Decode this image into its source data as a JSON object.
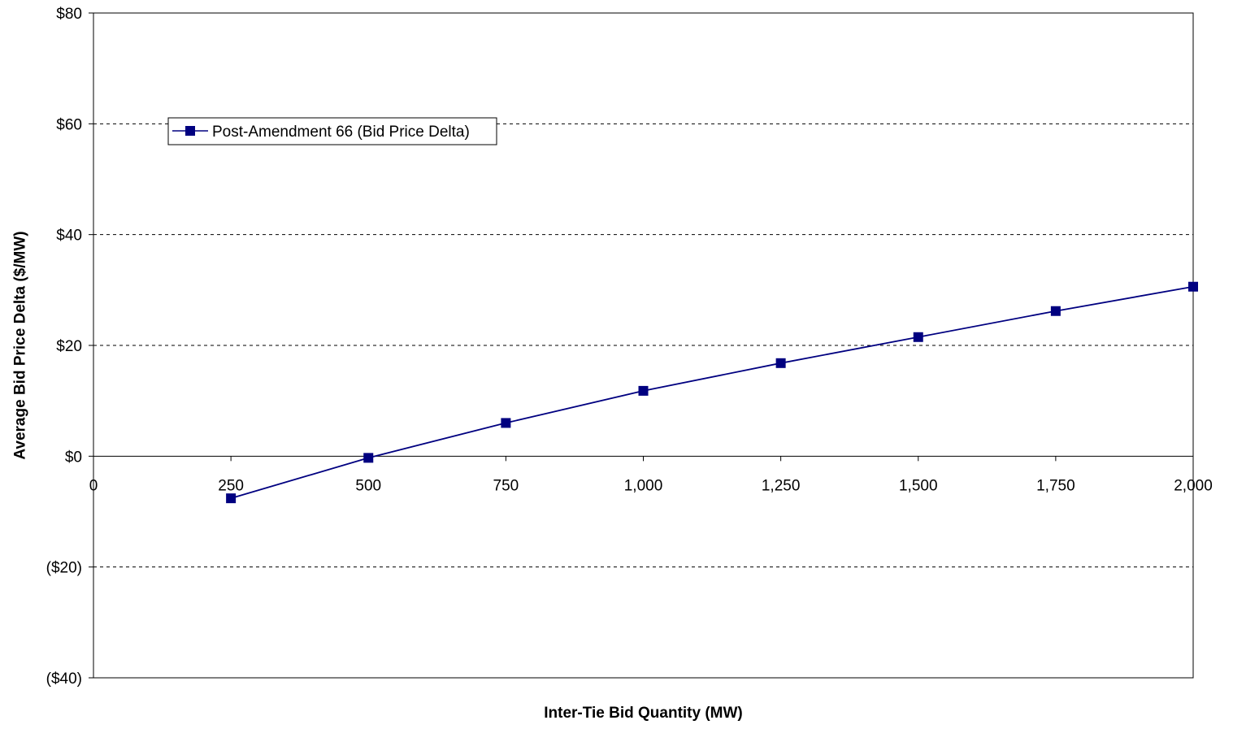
{
  "chart_data": {
    "type": "line",
    "title": "",
    "xlabel": "Inter-Tie Bid Quantity (MW)",
    "ylabel": "Average Bid Price Delta ($/MW)",
    "xlim": [
      0,
      2000
    ],
    "ylim": [
      -40,
      80
    ],
    "x_ticks": [
      0,
      250,
      500,
      750,
      1000,
      1250,
      1500,
      1750,
      2000
    ],
    "x_tick_labels": [
      "0",
      "250",
      "500",
      "750",
      "1,000",
      "1,250",
      "1,500",
      "1,750",
      "2,000"
    ],
    "y_ticks": [
      -40,
      -20,
      0,
      20,
      40,
      60,
      80
    ],
    "y_tick_labels": [
      "($40)",
      "($20)",
      "$0",
      "$20",
      "$40",
      "$60",
      "$80"
    ],
    "grid": "horizontal dashed",
    "legend_position": "top-left",
    "series": [
      {
        "name": "Post-Amendment 66 (Bid Price Delta)",
        "color": "#000080",
        "marker": "square",
        "x": [
          250,
          500,
          750,
          1000,
          1250,
          1500,
          1750,
          2000
        ],
        "y": [
          -7.6,
          -0.3,
          6.0,
          11.8,
          16.8,
          21.5,
          26.2,
          30.6
        ]
      }
    ]
  }
}
